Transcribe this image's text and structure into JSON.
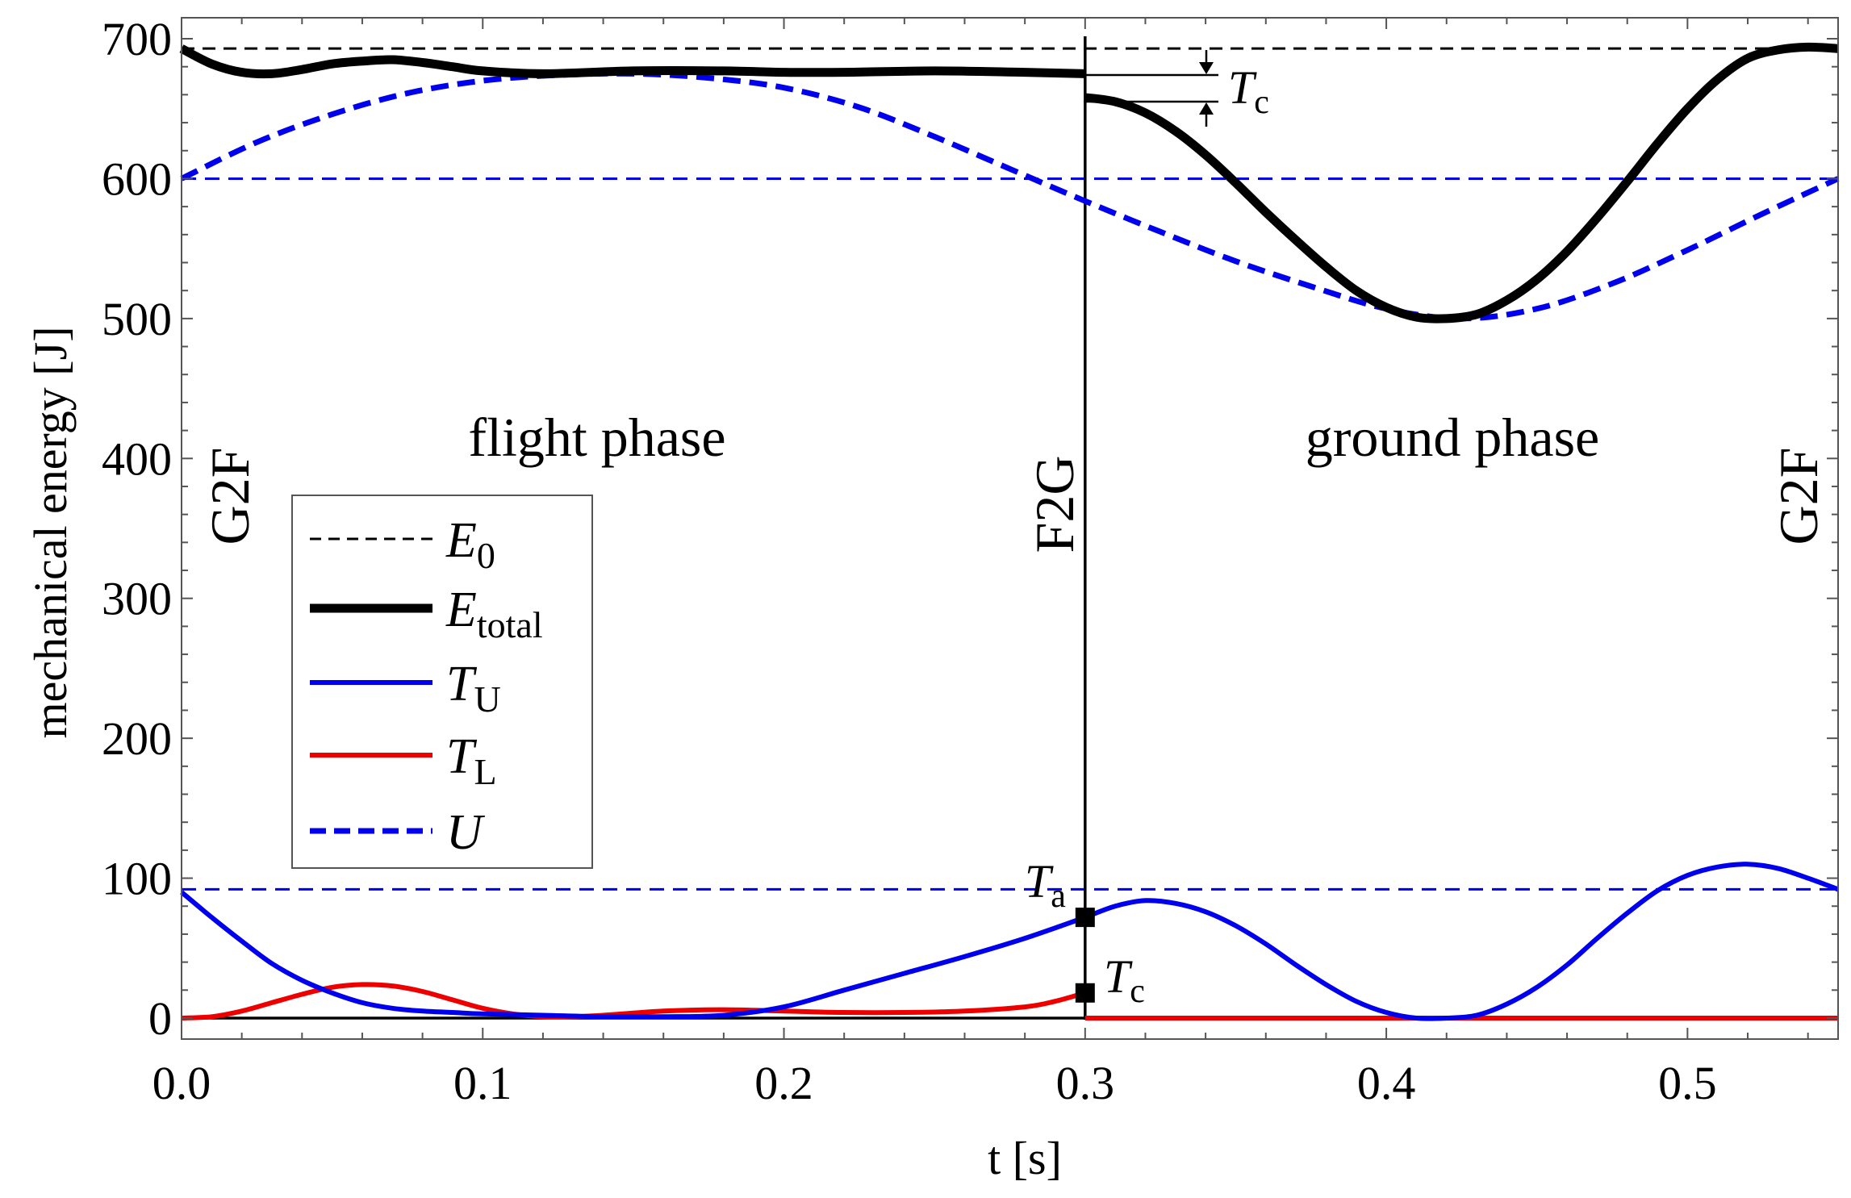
{
  "chart_data": {
    "type": "line",
    "title": "",
    "xlabel": "t  [s]",
    "ylabel": "mechanical energy [J]",
    "xlim": [
      0,
      0.55
    ],
    "ylim": [
      -15,
      715
    ],
    "xticks": [
      0.0,
      0.1,
      0.2,
      0.3,
      0.4,
      0.5
    ],
    "xtick_labels": [
      "0.0",
      "0.1",
      "0.2",
      "0.3",
      "0.4",
      "0.5"
    ],
    "yticks": [
      0,
      100,
      200,
      300,
      400,
      500,
      600,
      700
    ],
    "ytick_labels": [
      "0",
      "100",
      "200",
      "300",
      "400",
      "500",
      "600",
      "700"
    ],
    "phase_labels": {
      "flight": "flight phase",
      "ground": "ground phase"
    },
    "event_labels": {
      "start": "G2F",
      "middle": "F2G",
      "end": "G2F"
    },
    "event_times": [
      0.0,
      0.3,
      0.55
    ],
    "reference_lines": [
      {
        "name": "E0",
        "value": 693,
        "color": "#000000"
      },
      {
        "name": "U-level-high",
        "value": 600,
        "color": "#0000ee"
      },
      {
        "name": "T-level",
        "value": 92,
        "color": "#0000ee"
      }
    ],
    "legend": {
      "position": "left-middle",
      "entries": [
        {
          "symbol": "E",
          "sub": "0",
          "style": "dashed-thin",
          "color": "#000000"
        },
        {
          "symbol": "E",
          "sub": "total",
          "style": "solid-thick",
          "color": "#000000"
        },
        {
          "symbol": "T",
          "sub": "U",
          "style": "solid",
          "color": "#0000ee"
        },
        {
          "symbol": "T",
          "sub": "L",
          "style": "solid",
          "color": "#ee0000"
        },
        {
          "symbol": "U",
          "sub": "",
          "style": "dashed-thick",
          "color": "#0000ee"
        }
      ]
    },
    "annotations": {
      "Tc_top": {
        "symbol": "T",
        "sub": "c"
      },
      "Ta": {
        "symbol": "T",
        "sub": "a",
        "value": 72
      },
      "Tc_bottom": {
        "symbol": "T",
        "sub": "c",
        "value": 18
      }
    },
    "series": [
      {
        "name": "E_total",
        "color": "#000000",
        "segments": [
          {
            "x": [
              0,
              0.01,
              0.02,
              0.03,
              0.04,
              0.05,
              0.06,
              0.07,
              0.08,
              0.09,
              0.1,
              0.12,
              0.15,
              0.18,
              0.2,
              0.22,
              0.25,
              0.28,
              0.3
            ],
            "y": [
              693,
              682,
              676,
              675,
              678,
              682,
              684,
              685,
              683,
              680,
              677,
              675,
              677,
              677,
              676,
              676,
              677,
              676,
              675
            ]
          },
          {
            "x": [
              0.3,
              0.31,
              0.32,
              0.33,
              0.34,
              0.35,
              0.36,
              0.37,
              0.38,
              0.39,
              0.4,
              0.41,
              0.42,
              0.43,
              0.44,
              0.45,
              0.46,
              0.47,
              0.48,
              0.49,
              0.5,
              0.51,
              0.52,
              0.53,
              0.54,
              0.55
            ],
            "y": [
              658,
              655,
              647,
              634,
              617,
              597,
              576,
              556,
              537,
              520,
              508,
              501,
              500,
              503,
              513,
              528,
              548,
              572,
              598,
              625,
              650,
              671,
              686,
              692,
              694,
              693
            ]
          }
        ]
      },
      {
        "name": "U",
        "color": "#0000ee",
        "x": [
          0,
          0.025,
          0.05,
          0.075,
          0.1,
          0.125,
          0.15,
          0.175,
          0.2,
          0.225,
          0.25,
          0.275,
          0.3,
          0.325,
          0.35,
          0.375,
          0.4,
          0.425,
          0.45,
          0.475,
          0.5,
          0.525,
          0.55
        ],
        "y": [
          600,
          626,
          646,
          661,
          670,
          674,
          675,
          672,
          665,
          651,
          630,
          607,
          584,
          562,
          541,
          523,
          507,
          500,
          507,
          525,
          549,
          575,
          600
        ]
      },
      {
        "name": "T_U",
        "color": "#0000ee",
        "segments": [
          {
            "x": [
              0,
              0.01,
              0.02,
              0.03,
              0.04,
              0.05,
              0.06,
              0.07,
              0.08,
              0.09,
              0.1,
              0.12,
              0.14,
              0.16,
              0.18,
              0.2,
              0.22,
              0.24,
              0.26,
              0.28,
              0.3
            ],
            "y": [
              90,
              72,
              55,
              39,
              27,
              18,
              11,
              7,
              5,
              4,
              3,
              2,
              1,
              1,
              2,
              8,
              20,
              32,
              44,
              57,
              72
            ]
          },
          {
            "x": [
              0.3,
              0.31,
              0.32,
              0.33,
              0.34,
              0.35,
              0.36,
              0.37,
              0.38,
              0.39,
              0.4,
              0.41,
              0.42,
              0.43,
              0.44,
              0.45,
              0.46,
              0.47,
              0.48,
              0.49,
              0.5,
              0.51,
              0.52,
              0.53,
              0.54,
              0.55
            ],
            "y": [
              72,
              80,
              84,
              82,
              76,
              66,
              53,
              38,
              24,
              12,
              4,
              0,
              0,
              2,
              10,
              22,
              38,
              57,
              75,
              91,
              102,
              108,
              110,
              107,
              100,
              92
            ]
          }
        ]
      },
      {
        "name": "T_L",
        "color": "#ee0000",
        "segments": [
          {
            "x": [
              0,
              0.01,
              0.02,
              0.03,
              0.04,
              0.05,
              0.06,
              0.07,
              0.08,
              0.09,
              0.1,
              0.11,
              0.12,
              0.13,
              0.14,
              0.16,
              0.18,
              0.2,
              0.22,
              0.24,
              0.26,
              0.28,
              0.29,
              0.3
            ],
            "y": [
              0,
              1,
              5,
              11,
              17,
              22,
              24,
              23,
              19,
              13,
              7,
              3,
              1,
              1,
              2,
              5,
              6,
              5,
              4,
              4,
              5,
              8,
              12,
              18
            ]
          },
          {
            "x": [
              0.3,
              0.55
            ],
            "y": [
              0,
              0
            ]
          }
        ]
      },
      {
        "name": "baseline-flight",
        "color": "#000000",
        "x": [
          0,
          0.3
        ],
        "y": [
          0,
          0
        ]
      }
    ]
  }
}
